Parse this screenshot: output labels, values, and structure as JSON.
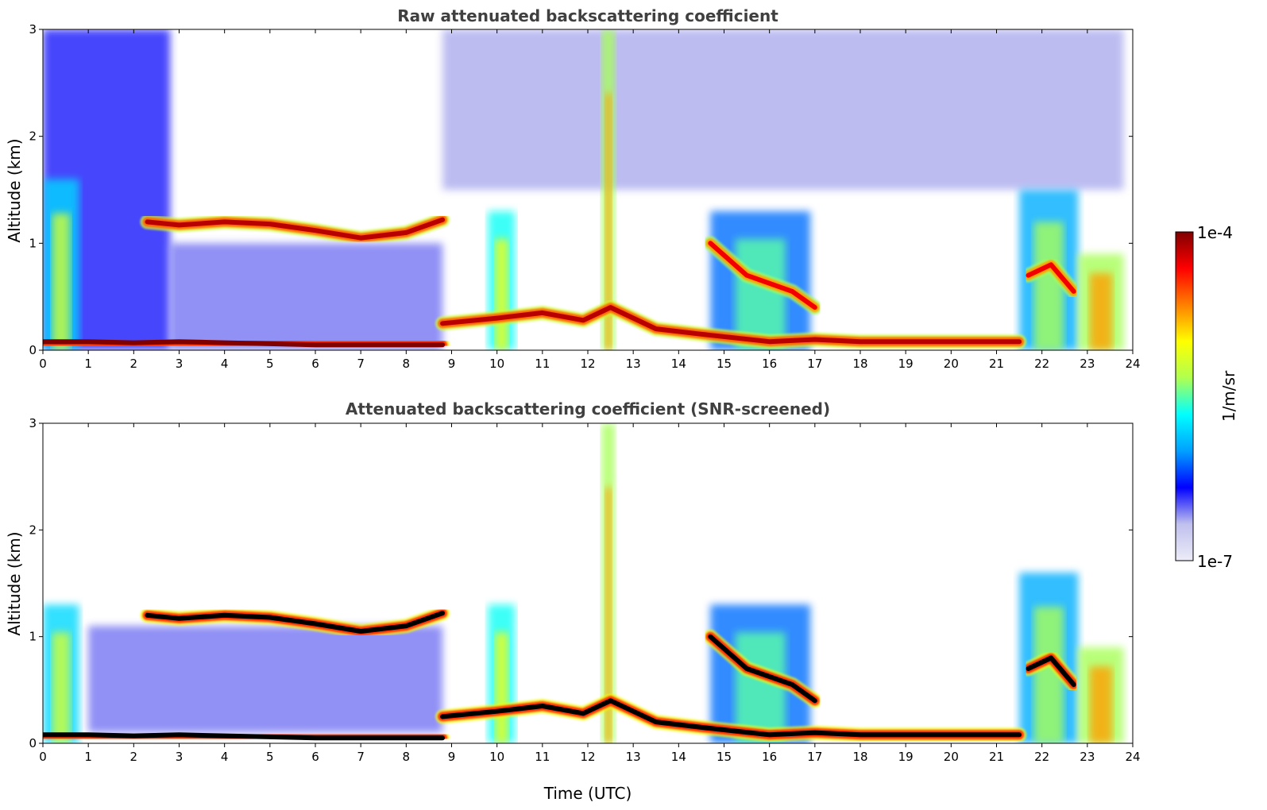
{
  "chart_data": [
    {
      "type": "heatmap",
      "title": "Raw attenuated backscattering coefficient",
      "xlabel": "",
      "ylabel": "Altitude (km)",
      "xlim": [
        0,
        24
      ],
      "ylim": [
        0,
        3
      ],
      "x_ticks": [
        "0",
        "1",
        "2",
        "3",
        "4",
        "5",
        "6",
        "7",
        "8",
        "9",
        "10",
        "11",
        "12",
        "13",
        "14",
        "15",
        "16",
        "17",
        "18",
        "19",
        "20",
        "21",
        "22",
        "23",
        "24"
      ],
      "y_ticks": [
        "0",
        "1",
        "2",
        "3"
      ],
      "layers": [
        {
          "x": [
            0.0,
            1.0,
            2.0,
            3.0,
            4.0,
            5.0,
            6.0,
            7.0,
            8.0,
            8.8
          ],
          "y": [
            0.08,
            0.08,
            0.07,
            0.08,
            0.07,
            0.06,
            0.05,
            0.05,
            0.05,
            0.05
          ],
          "level": 1.0
        },
        {
          "x": [
            2.3,
            3.0,
            4.0,
            5.0,
            6.0,
            7.0,
            8.0,
            8.8
          ],
          "y": [
            1.2,
            1.17,
            1.2,
            1.18,
            1.12,
            1.05,
            1.1,
            1.22
          ],
          "level": 0.95
        },
        {
          "x": [
            8.8,
            10.0,
            11.0,
            11.9,
            12.5,
            13.5,
            14.5,
            16.0,
            17.0,
            18.0,
            19.0,
            20.0,
            21.5
          ],
          "y": [
            0.25,
            0.3,
            0.35,
            0.28,
            0.4,
            0.2,
            0.15,
            0.08,
            0.1,
            0.08,
            0.08,
            0.08,
            0.08
          ],
          "level": 0.95
        },
        {
          "x": [
            14.7,
            15.5,
            16.5,
            17.0
          ],
          "y": [
            1.0,
            0.7,
            0.55,
            0.4
          ],
          "level": 0.9
        },
        {
          "x": [
            21.7,
            22.2,
            22.7
          ],
          "y": [
            0.7,
            0.8,
            0.55
          ],
          "level": 0.9
        }
      ],
      "columns": [
        {
          "x0": 0.0,
          "x1": 0.8,
          "ytop": 1.6,
          "level": 0.6
        },
        {
          "x0": 9.8,
          "x1": 10.4,
          "ytop": 1.3,
          "level": 0.65
        },
        {
          "x0": 12.3,
          "x1": 12.6,
          "ytop": 3.0,
          "level": 0.75
        },
        {
          "x0": 14.7,
          "x1": 16.9,
          "ytop": 1.3,
          "level": 0.5
        },
        {
          "x0": 21.5,
          "x1": 22.8,
          "ytop": 1.5,
          "level": 0.55
        },
        {
          "x0": 22.8,
          "x1": 23.8,
          "ytop": 0.9,
          "level": 0.75
        }
      ],
      "background": [
        {
          "x0": 0.0,
          "x1": 2.8,
          "y0": 0.0,
          "y1": 3.0,
          "level": 0.2
        },
        {
          "x0": 2.8,
          "x1": 8.8,
          "y0": 0.0,
          "y1": 1.0,
          "level": 0.15
        },
        {
          "x0": 8.8,
          "x1": 23.8,
          "y0": 1.5,
          "y1": 3.0,
          "level": 0.12
        }
      ]
    },
    {
      "type": "heatmap",
      "title": "Attenuated backscattering coefficient (SNR-screened)",
      "xlabel": "Time (UTC)",
      "ylabel": "Altitude (km)",
      "xlim": [
        0,
        24
      ],
      "ylim": [
        0,
        3
      ],
      "x_ticks": [
        "0",
        "1",
        "2",
        "3",
        "4",
        "5",
        "6",
        "7",
        "8",
        "9",
        "10",
        "11",
        "12",
        "13",
        "14",
        "15",
        "16",
        "17",
        "18",
        "19",
        "20",
        "21",
        "22",
        "23",
        "24"
      ],
      "y_ticks": [
        "0",
        "1",
        "2",
        "3"
      ],
      "layers": [
        {
          "x": [
            0.0,
            1.0,
            2.0,
            3.0,
            4.0,
            5.0,
            6.0,
            7.0,
            8.0,
            8.8
          ],
          "y": [
            0.08,
            0.08,
            0.07,
            0.08,
            0.07,
            0.06,
            0.05,
            0.05,
            0.05,
            0.05
          ],
          "level": 1.0
        },
        {
          "x": [
            2.3,
            3.0,
            4.0,
            5.0,
            6.0,
            7.0,
            8.0,
            8.8
          ],
          "y": [
            1.2,
            1.17,
            1.2,
            1.18,
            1.12,
            1.05,
            1.1,
            1.22
          ],
          "level": 1.0
        },
        {
          "x": [
            8.8,
            10.0,
            11.0,
            11.9,
            12.5,
            13.5,
            14.5,
            16.0,
            17.0,
            18.0,
            19.0,
            20.0,
            21.5
          ],
          "y": [
            0.25,
            0.3,
            0.35,
            0.28,
            0.4,
            0.2,
            0.15,
            0.08,
            0.1,
            0.08,
            0.08,
            0.08,
            0.08
          ],
          "level": 1.0
        },
        {
          "x": [
            14.7,
            15.5,
            16.5,
            17.0
          ],
          "y": [
            1.0,
            0.7,
            0.55,
            0.4
          ],
          "level": 1.0
        },
        {
          "x": [
            21.7,
            22.2,
            22.7
          ],
          "y": [
            0.7,
            0.8,
            0.55
          ],
          "level": 1.0
        }
      ],
      "columns": [
        {
          "x0": 0.0,
          "x1": 0.8,
          "ytop": 1.3,
          "level": 0.6
        },
        {
          "x0": 9.8,
          "x1": 10.4,
          "ytop": 1.3,
          "level": 0.65
        },
        {
          "x0": 12.3,
          "x1": 12.6,
          "ytop": 3.0,
          "level": 0.75
        },
        {
          "x0": 14.7,
          "x1": 16.9,
          "ytop": 1.3,
          "level": 0.5
        },
        {
          "x0": 21.5,
          "x1": 22.8,
          "ytop": 1.6,
          "level": 0.55
        },
        {
          "x0": 22.8,
          "x1": 23.8,
          "ytop": 0.9,
          "level": 0.75
        }
      ],
      "background": [
        {
          "x0": 1.0,
          "x1": 8.8,
          "y0": 0.1,
          "y1": 1.1,
          "level": 0.15
        }
      ]
    }
  ],
  "colorbar": {
    "label": "1/m/sr",
    "max_label": "1e-4",
    "min_label": "1e-7",
    "colormap": "jet",
    "colors": [
      "#ececf8",
      "#c0c0ee",
      "#0000ff",
      "#00a0ff",
      "#00ffff",
      "#b0ff50",
      "#ffff00",
      "#ff8000",
      "#ff0000",
      "#800000"
    ]
  }
}
